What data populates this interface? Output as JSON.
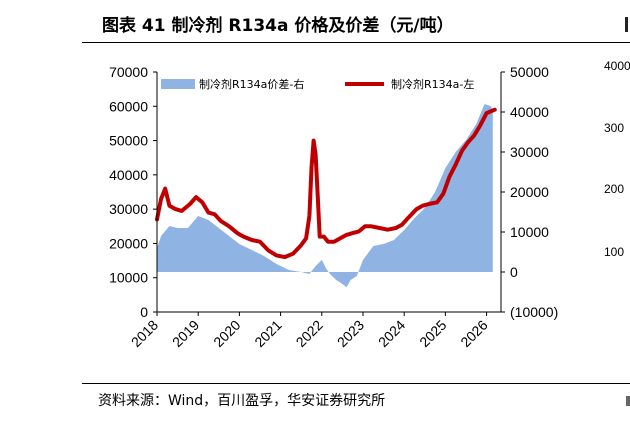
{
  "title": "图表 41 制冷剂 R134a 价格及价差（元/吨）",
  "source": "资料来源：Wind，百川盈孚，华安证券研究所",
  "neighbor_ticks": [
    "4000",
    "300",
    "200",
    "100"
  ],
  "colors": {
    "spread": "#8fb4e3",
    "price": "#c00000",
    "negative_tick": "#c00000"
  },
  "chart_data": {
    "type": "bar+line",
    "title": "制冷剂 R134a 价格及价差（元/吨）",
    "x_ticks": [
      "2018",
      "2019",
      "2020",
      "2021",
      "2022",
      "2023",
      "2024",
      "2025",
      "2026"
    ],
    "left_axis": {
      "ticks": [
        "0",
        "10000",
        "20000",
        "30000",
        "40000",
        "50000",
        "60000",
        "70000"
      ],
      "range": [
        0,
        70000
      ]
    },
    "right_axis": {
      "ticks": [
        "(10000)",
        "0",
        "10000",
        "20000",
        "30000",
        "40000",
        "50000"
      ],
      "range": [
        -10000,
        50000
      ]
    },
    "legend_position": "top",
    "series": [
      {
        "name": "制冷剂R134a价差-右",
        "type": "area",
        "axis": "right",
        "points": [
          [
            2018.0,
            6000
          ],
          [
            2018.1,
            9000
          ],
          [
            2018.3,
            11500
          ],
          [
            2018.5,
            11000
          ],
          [
            2018.75,
            11000
          ],
          [
            2019.0,
            14000
          ],
          [
            2019.25,
            13000
          ],
          [
            2019.5,
            11000
          ],
          [
            2019.75,
            9000
          ],
          [
            2020.0,
            7000
          ],
          [
            2020.3,
            5500
          ],
          [
            2020.6,
            4000
          ],
          [
            2020.9,
            2000
          ],
          [
            2021.2,
            500
          ],
          [
            2021.5,
            0
          ],
          [
            2021.7,
            -500
          ],
          [
            2021.85,
            1500
          ],
          [
            2022.0,
            3000
          ],
          [
            2022.1,
            1000
          ],
          [
            2022.2,
            -500
          ],
          [
            2022.35,
            -2000
          ],
          [
            2022.5,
            -3000
          ],
          [
            2022.6,
            -3800
          ],
          [
            2022.7,
            -2000
          ],
          [
            2022.85,
            -1000
          ],
          [
            2023.0,
            3000
          ],
          [
            2023.25,
            6500
          ],
          [
            2023.5,
            7000
          ],
          [
            2023.75,
            8000
          ],
          [
            2024.0,
            10500
          ],
          [
            2024.25,
            13500
          ],
          [
            2024.5,
            16000
          ],
          [
            2024.75,
            20000
          ],
          [
            2025.0,
            26000
          ],
          [
            2025.25,
            30000
          ],
          [
            2025.5,
            33000
          ],
          [
            2025.75,
            37000
          ],
          [
            2025.95,
            42000
          ],
          [
            2026.1,
            41500
          ],
          [
            2026.15,
            40500
          ]
        ]
      },
      {
        "name": "制冷剂R134a-左",
        "type": "line",
        "axis": "left",
        "points": [
          [
            2018.0,
            27000
          ],
          [
            2018.1,
            33000
          ],
          [
            2018.2,
            36000
          ],
          [
            2018.3,
            31000
          ],
          [
            2018.45,
            30000
          ],
          [
            2018.6,
            29500
          ],
          [
            2018.8,
            31500
          ],
          [
            2018.95,
            33500
          ],
          [
            2019.1,
            32000
          ],
          [
            2019.25,
            29000
          ],
          [
            2019.4,
            28500
          ],
          [
            2019.55,
            26500
          ],
          [
            2019.75,
            25000
          ],
          [
            2019.95,
            23000
          ],
          [
            2020.1,
            22000
          ],
          [
            2020.3,
            21000
          ],
          [
            2020.5,
            20500
          ],
          [
            2020.7,
            18000
          ],
          [
            2020.9,
            16500
          ],
          [
            2021.1,
            16000
          ],
          [
            2021.3,
            17000
          ],
          [
            2021.5,
            19500
          ],
          [
            2021.62,
            21500
          ],
          [
            2021.7,
            28000
          ],
          [
            2021.75,
            42000
          ],
          [
            2021.8,
            50000
          ],
          [
            2021.85,
            46000
          ],
          [
            2021.9,
            34000
          ],
          [
            2021.95,
            22000
          ],
          [
            2022.05,
            22000
          ],
          [
            2022.15,
            20500
          ],
          [
            2022.3,
            20500
          ],
          [
            2022.45,
            21500
          ],
          [
            2022.6,
            22500
          ],
          [
            2022.75,
            23000
          ],
          [
            2022.9,
            23500
          ],
          [
            2023.05,
            25000
          ],
          [
            2023.2,
            25000
          ],
          [
            2023.4,
            24500
          ],
          [
            2023.6,
            24000
          ],
          [
            2023.8,
            24500
          ],
          [
            2023.95,
            25500
          ],
          [
            2024.1,
            27500
          ],
          [
            2024.3,
            30000
          ],
          [
            2024.45,
            31000
          ],
          [
            2024.6,
            31500
          ],
          [
            2024.8,
            32000
          ],
          [
            2024.95,
            34500
          ],
          [
            2025.1,
            39500
          ],
          [
            2025.25,
            43000
          ],
          [
            2025.4,
            47000
          ],
          [
            2025.55,
            49500
          ],
          [
            2025.7,
            51500
          ],
          [
            2025.85,
            54500
          ],
          [
            2026.0,
            58000
          ],
          [
            2026.1,
            58500
          ],
          [
            2026.2,
            59000
          ]
        ]
      }
    ]
  }
}
